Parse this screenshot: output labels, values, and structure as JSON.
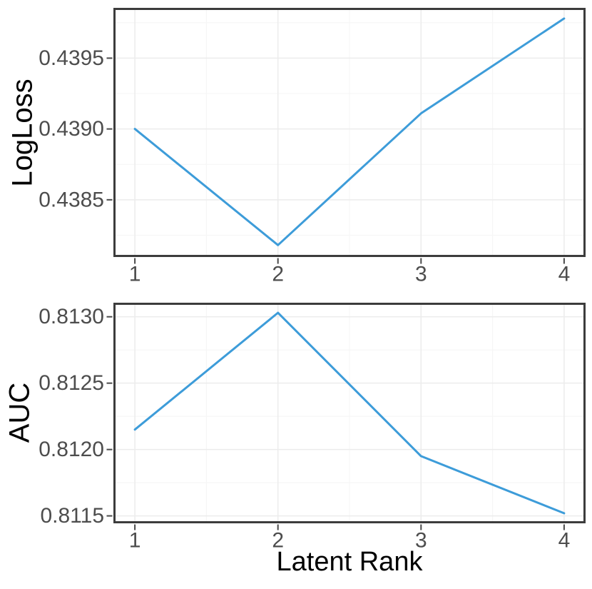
{
  "figure": {
    "background": "#ffffff",
    "line_color": "#3D9CD9",
    "grid_major_color": "#ececec",
    "grid_minor_color": "#f6f6f6",
    "border_color": "#3c3c3c",
    "tick_color": "#4a4a4a",
    "tick_label_color": "#4d4d4d",
    "title_color": "#000000"
  },
  "chart_data": [
    {
      "type": "line",
      "name": "logloss",
      "title": "",
      "xlabel": "",
      "ylabel": "LogLoss",
      "x": [
        1,
        2,
        3,
        4
      ],
      "values": [
        0.439,
        0.43818,
        0.43911,
        0.43978
      ],
      "xlim": [
        0.85,
        4.15
      ],
      "ylim": [
        0.438096,
        0.439855
      ],
      "xticks": [
        1,
        2,
        3,
        4
      ],
      "xtick_labels": [
        "1",
        "2",
        "3",
        "4"
      ],
      "yticks": [
        0.4385,
        0.439,
        0.4395
      ],
      "ytick_labels": [
        "0.4385",
        "0.4390",
        "0.4395"
      ],
      "grid": "major+minor",
      "legend": "none"
    },
    {
      "type": "line",
      "name": "auc",
      "title": "",
      "xlabel": "Latent Rank",
      "ylabel": "AUC",
      "x": [
        1,
        2,
        3,
        4
      ],
      "values": [
        0.81215,
        0.81303,
        0.81195,
        0.81152
      ],
      "xlim": [
        0.85,
        4.15
      ],
      "ylim": [
        0.811444,
        0.813106
      ],
      "xticks": [
        1,
        2,
        3,
        4
      ],
      "xtick_labels": [
        "1",
        "2",
        "3",
        "4"
      ],
      "yticks": [
        0.8115,
        0.812,
        0.8125,
        0.813
      ],
      "ytick_labels": [
        "0.8115",
        "0.8120",
        "0.8125",
        "0.8130"
      ],
      "grid": "major+minor",
      "legend": "none"
    }
  ]
}
